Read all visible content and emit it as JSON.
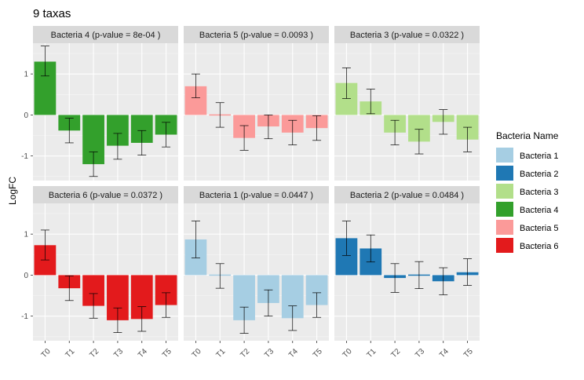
{
  "chart_data": {
    "type": "bar",
    "title": "9 taxas",
    "xlabel": "",
    "ylabel": "LogFC",
    "categories": [
      "T0",
      "T1",
      "T2",
      "T3",
      "T4",
      "T5"
    ],
    "ylim": [
      -1.6,
      1.75
    ],
    "yticks": [
      -1,
      0,
      1
    ],
    "grid": true,
    "legend": {
      "title": "Bacteria Name",
      "position": "right",
      "entries": [
        {
          "name": "Bacteria 1",
          "color": "#a6cee3"
        },
        {
          "name": "Bacteria 2",
          "color": "#1f78b4"
        },
        {
          "name": "Bacteria 3",
          "color": "#b2df8a"
        },
        {
          "name": "Bacteria 4",
          "color": "#33a02c"
        },
        {
          "name": "Bacteria 5",
          "color": "#fb9a99"
        },
        {
          "name": "Bacteria 6",
          "color": "#e31a1c"
        }
      ]
    },
    "panels": [
      {
        "label": "Bacteria 4 (p-value = 8e-04 )",
        "taxon": "Bacteria 4",
        "color": "#33a02c",
        "values": [
          1.3,
          -0.38,
          -1.2,
          -0.75,
          -0.68,
          -0.48
        ],
        "err_low": [
          0.95,
          -0.68,
          -1.5,
          -1.08,
          -0.98,
          -0.78
        ],
        "err_high": [
          1.68,
          -0.08,
          -0.9,
          -0.45,
          -0.38,
          -0.18
        ]
      },
      {
        "label": "Bacteria 5 (p-value = 0.0093 )",
        "taxon": "Bacteria 5",
        "color": "#fb9a99",
        "values": [
          0.7,
          0.0,
          -0.56,
          -0.28,
          -0.43,
          -0.32
        ],
        "err_low": [
          0.42,
          -0.3,
          -0.86,
          -0.58,
          -0.73,
          -0.62
        ],
        "err_high": [
          1.0,
          0.3,
          -0.26,
          0.0,
          -0.13,
          -0.02
        ]
      },
      {
        "label": "Bacteria 3 (p-value = 0.0322 )",
        "taxon": "Bacteria 3",
        "color": "#b2df8a",
        "values": [
          0.78,
          0.33,
          -0.43,
          -0.65,
          -0.17,
          -0.6
        ],
        "err_low": [
          0.4,
          0.03,
          -0.73,
          -0.95,
          -0.47,
          -0.9
        ],
        "err_high": [
          1.15,
          0.63,
          -0.13,
          -0.35,
          0.13,
          -0.3
        ]
      },
      {
        "label": "Bacteria 6 (p-value = 0.0372 )",
        "taxon": "Bacteria 6",
        "color": "#e31a1c",
        "values": [
          0.73,
          -0.32,
          -0.75,
          -1.1,
          -1.07,
          -0.73
        ],
        "err_low": [
          0.37,
          -0.62,
          -1.05,
          -1.4,
          -1.37,
          -1.03
        ],
        "err_high": [
          1.1,
          -0.02,
          -0.45,
          -0.8,
          -0.77,
          -0.43
        ]
      },
      {
        "label": "Bacteria 1 (p-value = 0.0447 )",
        "taxon": "Bacteria 1",
        "color": "#a6cee3",
        "values": [
          0.87,
          -0.02,
          -1.1,
          -0.68,
          -1.05,
          -0.73
        ],
        "err_low": [
          0.42,
          -0.32,
          -1.42,
          -1.0,
          -1.35,
          -1.03
        ],
        "err_high": [
          1.32,
          0.28,
          -0.78,
          -0.36,
          -0.75,
          -0.43
        ]
      },
      {
        "label": "Bacteria 2 (p-value = 0.0484 )",
        "taxon": "Bacteria 2",
        "color": "#1f78b4",
        "values": [
          0.9,
          0.65,
          -0.07,
          0.0,
          -0.15,
          0.07
        ],
        "err_low": [
          0.48,
          0.32,
          -0.42,
          -0.33,
          -0.48,
          -0.25
        ],
        "err_high": [
          1.32,
          0.98,
          0.28,
          0.33,
          0.18,
          0.4
        ]
      }
    ]
  }
}
